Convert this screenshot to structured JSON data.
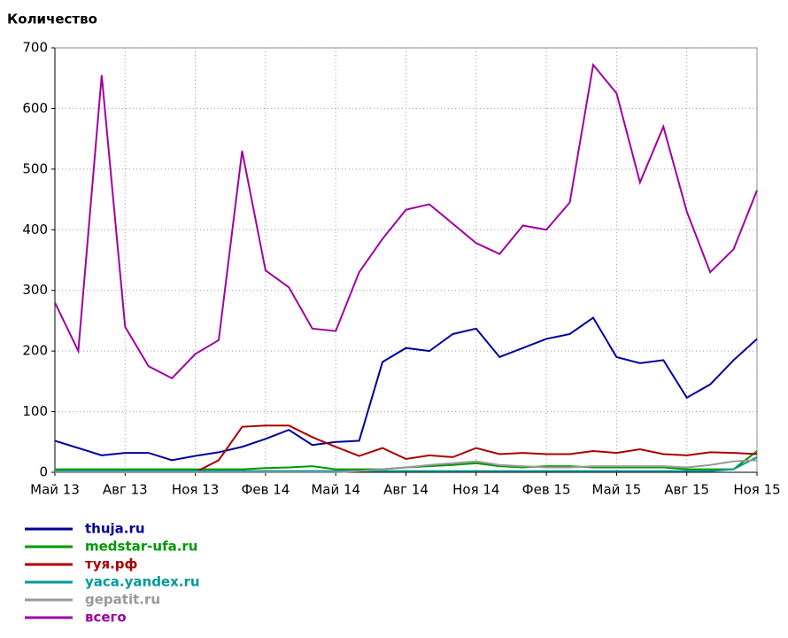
{
  "chart_data": {
    "type": "line",
    "y_label": "Количество",
    "categories": [
      "Май 13",
      null,
      null,
      "Авг 13",
      null,
      null,
      "Ноя 13",
      null,
      null,
      "Фев 14",
      null,
      null,
      "Май 14",
      null,
      null,
      "Авг 14",
      null,
      null,
      "Ноя 14",
      null,
      null,
      "Фев 15",
      null,
      null,
      "Май 15",
      null,
      null,
      "Авг 15",
      null,
      null,
      "Ноя 15"
    ],
    "ylim": [
      0,
      700
    ],
    "yticks": [
      0,
      100,
      200,
      300,
      400,
      500,
      600,
      700
    ],
    "grid": true,
    "series": [
      {
        "name": "thuja.ru",
        "color": "#000099",
        "values": [
          52,
          40,
          28,
          32,
          32,
          20,
          27,
          33,
          42,
          55,
          70,
          45,
          50,
          52,
          182,
          205,
          200,
          228,
          237,
          190,
          205,
          220,
          228,
          255,
          190,
          180,
          185,
          123,
          145,
          185,
          220
        ]
      },
      {
        "name": "medstar-ufa.ru",
        "color": "#009900",
        "values": [
          5,
          5,
          5,
          5,
          5,
          5,
          5,
          5,
          5,
          7,
          8,
          10,
          5,
          5,
          5,
          8,
          10,
          12,
          15,
          10,
          8,
          10,
          10,
          8,
          8,
          8,
          8,
          5,
          5,
          5,
          35
        ]
      },
      {
        "name": "туя.рф",
        "color": "#aa0000",
        "values": [
          0,
          0,
          0,
          0,
          0,
          0,
          0,
          20,
          75,
          77,
          77,
          58,
          42,
          27,
          40,
          22,
          28,
          25,
          40,
          30,
          32,
          30,
          30,
          35,
          32,
          38,
          30,
          28,
          33,
          32,
          30
        ]
      },
      {
        "name": "yaca.yandex.ru",
        "color": "#009999",
        "values": [
          2,
          2,
          2,
          2,
          2,
          2,
          2,
          2,
          2,
          2,
          2,
          2,
          2,
          2,
          2,
          2,
          2,
          2,
          2,
          2,
          2,
          2,
          2,
          2,
          2,
          2,
          2,
          2,
          2,
          5,
          25
        ]
      },
      {
        "name": "gepatit.ru",
        "color": "#999999",
        "values": [
          0,
          0,
          0,
          0,
          0,
          0,
          0,
          0,
          0,
          0,
          0,
          0,
          0,
          2,
          5,
          8,
          12,
          15,
          18,
          12,
          10,
          8,
          8,
          10,
          10,
          10,
          10,
          8,
          12,
          18,
          20
        ]
      },
      {
        "name": "всего",
        "color": "#a000a0",
        "values": [
          280,
          200,
          655,
          240,
          175,
          155,
          195,
          218,
          530,
          333,
          305,
          237,
          233,
          330,
          385,
          433,
          442,
          410,
          378,
          360,
          407,
          400,
          445,
          672,
          625,
          478,
          570,
          430,
          330,
          368,
          465
        ]
      }
    ]
  }
}
